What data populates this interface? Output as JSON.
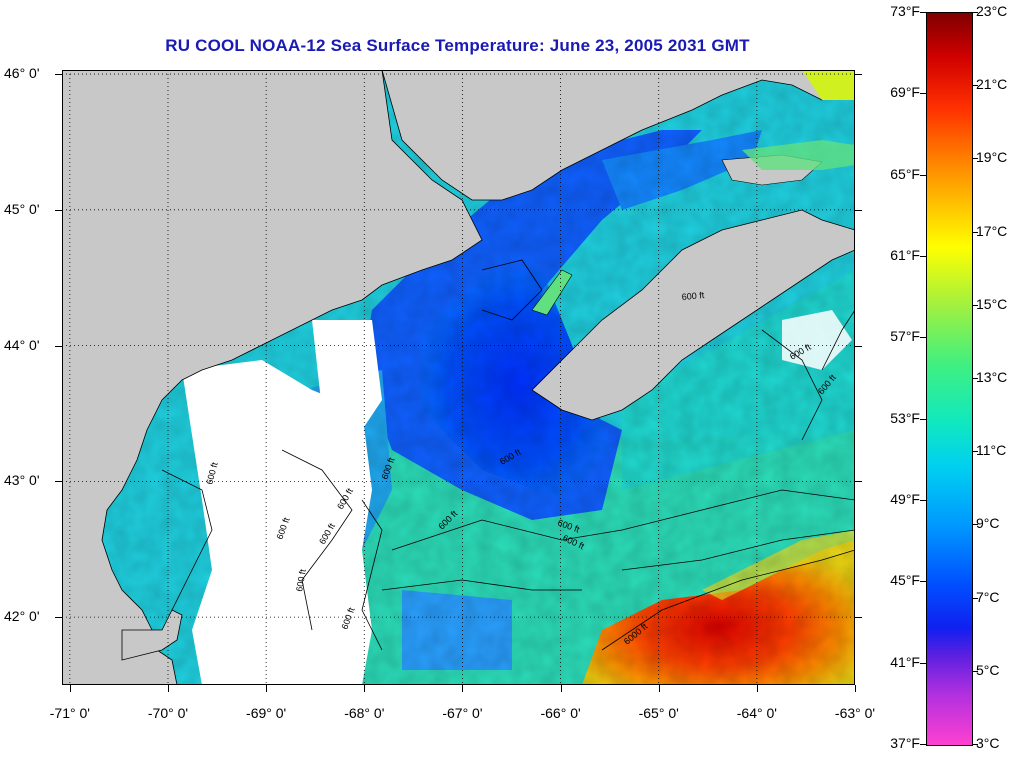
{
  "title": "RU COOL  NOAA-12  Sea Surface Temperature:  June 23, 2005 2031 GMT",
  "map": {
    "lon_range": [
      -71.08,
      -63.0
    ],
    "lat_range": [
      41.5,
      46.03
    ],
    "lat_labels": [
      "46° 0'",
      "45° 0'",
      "44° 0'",
      "43° 0'",
      "42° 0'"
    ],
    "lat_values": [
      46,
      45,
      44,
      43,
      42
    ],
    "lon_labels": [
      "-71° 0'",
      "-70° 0'",
      "-69° 0'",
      "-68° 0'",
      "-67° 0'",
      "-66° 0'",
      "-65° 0'",
      "-64° 0'",
      "-63° 0'"
    ],
    "lon_values": [
      -71,
      -70,
      -69,
      -68,
      -67,
      -66,
      -65,
      -64,
      -63
    ],
    "grid": "dotted",
    "land_color": "#c8c8c8",
    "cloud_color": "#ffffff",
    "contour_labels": [
      "600 ft",
      "600 ft",
      "600 ft",
      "600 ft",
      "600 ft",
      "600 ft",
      "600 ft",
      "600 ft",
      "600 ft",
      "600 ft",
      "600 ft",
      "600 ft",
      "600 ft",
      "600 ft",
      "6000 ft"
    ]
  },
  "colorbar": {
    "fahrenheit": [
      "73°F",
      "69°F",
      "65°F",
      "61°F",
      "57°F",
      "53°F",
      "49°F",
      "45°F",
      "41°F",
      "37°F"
    ],
    "celsius": [
      "23°C",
      "21°C",
      "19°C",
      "17°C",
      "15°C",
      "13°C",
      "11°C",
      "9°C",
      "7°C",
      "5°C",
      "3°C"
    ],
    "f_min": 37,
    "f_max": 73,
    "c_min": 3,
    "c_max": 23
  }
}
